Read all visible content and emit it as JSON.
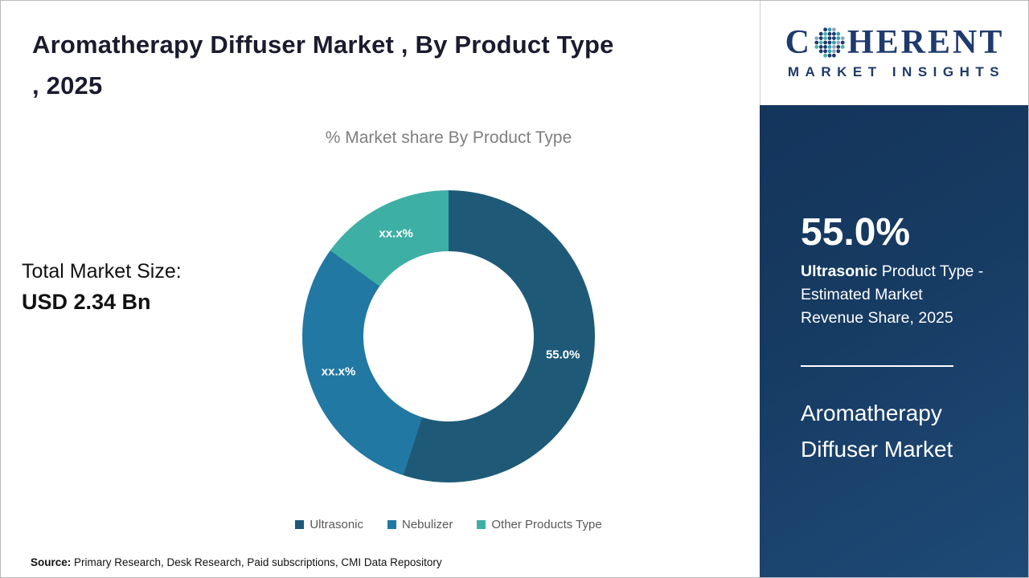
{
  "page": {
    "title_line1": "Aromatherapy Diffuser Market , By Product Type",
    "title_line2": ", 2025",
    "total_market_label": "Total Market Size:",
    "total_market_value": "USD 2.34 Bn",
    "source_label": "Source:",
    "source_text": " Primary Research, Desk Research, Paid subscriptions, CMI Data Repository"
  },
  "logo": {
    "brand_first": "C",
    "brand_rest": "HERENT",
    "tagline": "MARKET INSIGHTS",
    "color": "#1e3a6e",
    "icon": "dotted-globe-icon"
  },
  "sidebar": {
    "stat_value": "55.0%",
    "stat_bold": "Ultrasonic",
    "stat_rest": " Product Type - Estimated Market Revenue Share, 2025",
    "product_title": "Aromatherapy Diffuser Market"
  },
  "chart_data": {
    "type": "pie",
    "donut": true,
    "title": "% Market share By Product Type",
    "categories": [
      "Ultrasonic",
      "Nebulizer",
      "Other Products Type"
    ],
    "values": [
      55.0,
      30.0,
      15.0
    ],
    "labels": [
      "55.0%",
      "xx.x%",
      "xx.x%"
    ],
    "colors": [
      "#1e5a78",
      "#2178a3",
      "#3eafa4"
    ],
    "legend_position": "bottom",
    "note": "Only the Ultrasonic share (55.0%) is shown; Nebulizer and Other Products Type labels are masked as xx.x% in the source, values estimated from arc angles."
  }
}
